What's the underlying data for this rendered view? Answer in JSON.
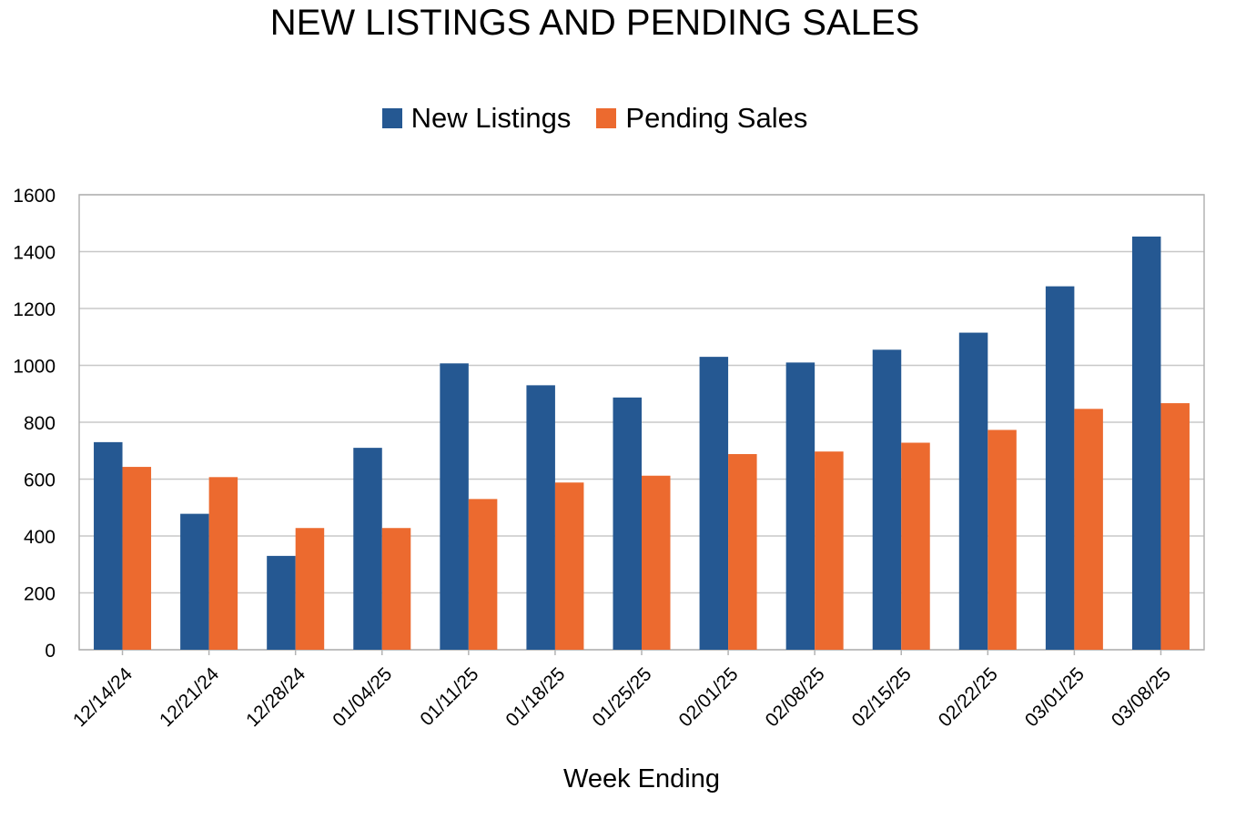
{
  "chart_data": {
    "type": "bar",
    "title": "NEW LISTINGS AND PENDING SALES",
    "xlabel": "Week Ending",
    "ylabel": "",
    "ylim": [
      0,
      1600
    ],
    "yticks": [
      "0",
      "200",
      "400",
      "600",
      "800",
      "1000",
      "1200",
      "1400",
      "1600"
    ],
    "grid": true,
    "legend_position": "top-center",
    "categories": [
      "12/14/24",
      "12/21/24",
      "12/28/24",
      "01/04/25",
      "01/11/25",
      "01/18/25",
      "01/25/25",
      "02/01/25",
      "02/08/25",
      "02/15/25",
      "02/22/25",
      "03/01/25",
      "03/08/25"
    ],
    "series": [
      {
        "name": "New Listings",
        "color": "#255892",
        "values": [
          730,
          478,
          330,
          710,
          1007,
          930,
          887,
          1030,
          1010,
          1055,
          1115,
          1278,
          1453
        ]
      },
      {
        "name": "Pending Sales",
        "color": "#ec6a2f",
        "values": [
          643,
          607,
          428,
          428,
          530,
          588,
          612,
          688,
          697,
          728,
          773,
          847,
          867
        ]
      }
    ]
  }
}
